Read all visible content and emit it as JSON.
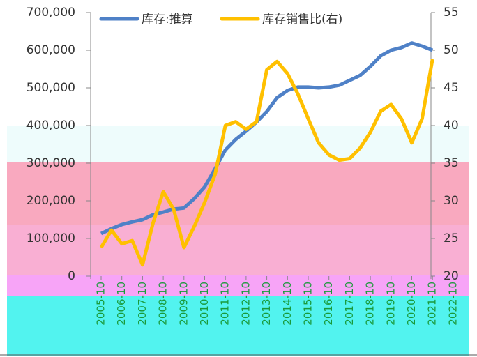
{
  "chart_data": {
    "type": "line",
    "x": [
      "2005-10",
      "2006-04",
      "2006-10",
      "2007-04",
      "2007-10",
      "2008-04",
      "2008-10",
      "2009-04",
      "2009-10",
      "2010-04",
      "2010-10",
      "2011-04",
      "2011-10",
      "2012-04",
      "2012-10",
      "2013-04",
      "2013-10",
      "2014-04",
      "2014-10",
      "2015-04",
      "2015-10",
      "2016-04",
      "2016-10",
      "2017-04",
      "2017-10",
      "2018-04",
      "2018-10",
      "2019-04",
      "2019-10",
      "2020-04",
      "2020-10",
      "2021-04",
      "2021-10"
    ],
    "xticks": [
      "2005-10",
      "2006-10",
      "2007-10",
      "2008-10",
      "2009-10",
      "2010-10",
      "2011-10",
      "2012-10",
      "2013-10",
      "2014-10",
      "2015-10",
      "2016-10",
      "2017-10",
      "2018-10",
      "2019-10",
      "2020-10",
      "2021-10",
      "2022-10"
    ],
    "series": [
      {
        "name": "库存:推算",
        "color": "#4f81c7",
        "values": [
          113000,
          126000,
          137000,
          144000,
          150000,
          163000,
          170000,
          178000,
          181000,
          206000,
          237000,
          285000,
          335000,
          363000,
          385000,
          409000,
          437000,
          474000,
          493000,
          502000,
          502000,
          500000,
          502000,
          507000,
          520000,
          533000,
          557000,
          585000,
          600000,
          607000,
          619000,
          611000,
          600000
        ]
      },
      {
        "name": "库存销售比(右)",
        "color": "#ffc000",
        "axis": "y2",
        "values": [
          23.8,
          26.1,
          24.3,
          24.7,
          21.5,
          27.0,
          31.2,
          28.9,
          23.8,
          26.6,
          29.8,
          33.5,
          40.0,
          40.5,
          39.5,
          40.5,
          47.4,
          48.5,
          46.9,
          44.2,
          40.9,
          37.7,
          36.1,
          35.4,
          35.6,
          37.0,
          39.1,
          41.9,
          42.8,
          40.9,
          37.7,
          40.9,
          48.8
        ]
      }
    ],
    "ylim": [
      0,
      700000
    ],
    "yticks": [
      {
        "value": 0,
        "label": "0"
      },
      {
        "value": 100000,
        "label": "100,000"
      },
      {
        "value": 200000,
        "label": "200,000"
      },
      {
        "value": 300000,
        "label": "300,000"
      },
      {
        "value": 400000,
        "label": "400,000"
      },
      {
        "value": 500000,
        "label": "500,000"
      },
      {
        "value": 600000,
        "label": "600,000"
      },
      {
        "value": 700000,
        "label": "700,000"
      }
    ],
    "y2lim": [
      20,
      55
    ],
    "y2ticks": [
      20,
      25,
      30,
      35,
      40,
      45,
      50,
      55
    ],
    "legend": "top"
  }
}
